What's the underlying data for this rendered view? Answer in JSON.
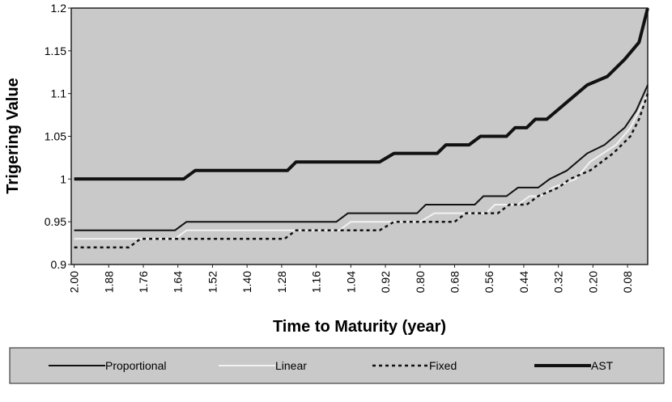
{
  "chart_data": {
    "type": "line",
    "xlabel": "Time to Maturity (year)",
    "ylabel": "Trigering Value",
    "xlim": [
      2.01,
      0.01
    ],
    "ylim": [
      0.9,
      1.2
    ],
    "xticks": [
      {
        "value": 2.0,
        "label": "2.00"
      },
      1.88,
      1.76,
      1.64,
      1.52,
      {
        "value": 1.4,
        "label": "1.40"
      },
      1.28,
      1.16,
      1.04,
      0.92,
      {
        "value": 0.8,
        "label": "0.80"
      },
      0.68,
      0.56,
      0.44,
      0.32,
      {
        "value": 0.2,
        "label": "0.20"
      },
      0.08
    ],
    "yticks": [
      0.9,
      0.95,
      1,
      1.05,
      1.1,
      1.15,
      1.2
    ],
    "grid": false,
    "legend": "bottom",
    "series": [
      {
        "name": "Proportional",
        "color": "#111111",
        "width": 2,
        "dash": "none",
        "x": [
          2.0,
          1.65,
          1.61,
          1.09,
          1.05,
          0.81,
          0.78,
          0.61,
          0.58,
          0.5,
          0.46,
          0.39,
          0.35,
          0.29,
          0.22,
          0.16,
          0.09,
          0.05,
          0.01
        ],
        "values": [
          0.94,
          0.94,
          0.95,
          0.95,
          0.96,
          0.96,
          0.97,
          0.97,
          0.98,
          0.98,
          0.99,
          0.99,
          1.0,
          1.01,
          1.03,
          1.04,
          1.06,
          1.08,
          1.11
        ]
      },
      {
        "name": "Linear",
        "color": "#f2f2f2",
        "width": 2,
        "dash": "none",
        "x": [
          2.0,
          1.65,
          1.61,
          1.08,
          1.04,
          0.8,
          0.75,
          0.57,
          0.54,
          0.46,
          0.42,
          0.38,
          0.34,
          0.26,
          0.21,
          0.12,
          0.07,
          0.04,
          0.01
        ],
        "values": [
          0.93,
          0.93,
          0.94,
          0.94,
          0.95,
          0.95,
          0.96,
          0.96,
          0.97,
          0.97,
          0.98,
          0.98,
          0.99,
          1.0,
          1.02,
          1.04,
          1.06,
          1.08,
          1.1
        ]
      },
      {
        "name": "Fixed",
        "color": "#111111",
        "width": 2.5,
        "dash": "4,4",
        "x": [
          2.0,
          1.81,
          1.77,
          1.27,
          1.23,
          0.94,
          0.89,
          0.68,
          0.64,
          0.53,
          0.49,
          0.43,
          0.39,
          0.32,
          0.28,
          0.21,
          0.13,
          0.07,
          0.04,
          0.01
        ],
        "values": [
          0.92,
          0.92,
          0.93,
          0.93,
          0.94,
          0.94,
          0.95,
          0.95,
          0.96,
          0.96,
          0.97,
          0.97,
          0.98,
          0.99,
          1.0,
          1.01,
          1.03,
          1.05,
          1.07,
          1.1
        ]
      },
      {
        "name": "AST",
        "color": "#111111",
        "width": 4,
        "dash": "none",
        "x": [
          2.0,
          1.62,
          1.58,
          1.26,
          1.23,
          0.94,
          0.89,
          0.74,
          0.71,
          0.63,
          0.59,
          0.5,
          0.47,
          0.43,
          0.4,
          0.36,
          0.29,
          0.22,
          0.15,
          0.09,
          0.04,
          0.01
        ],
        "values": [
          1.0,
          1.0,
          1.01,
          1.01,
          1.02,
          1.02,
          1.03,
          1.03,
          1.04,
          1.04,
          1.05,
          1.05,
          1.06,
          1.06,
          1.07,
          1.07,
          1.09,
          1.11,
          1.12,
          1.14,
          1.16,
          1.2
        ]
      }
    ]
  }
}
